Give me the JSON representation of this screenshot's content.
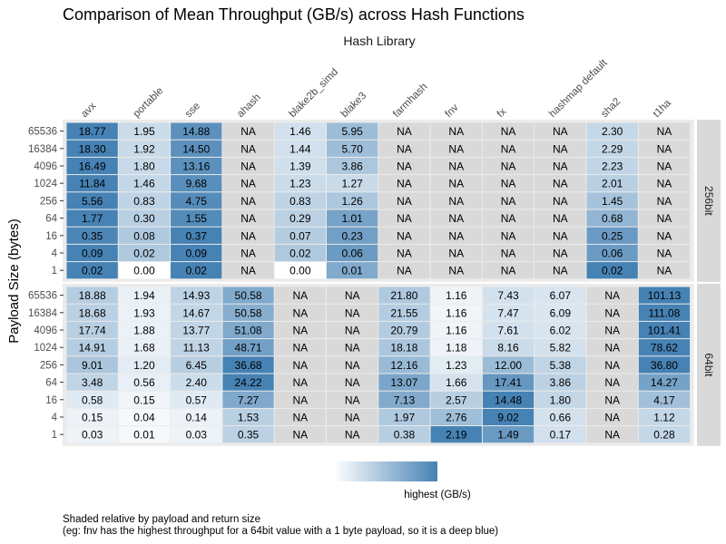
{
  "chart_data": {
    "type": "heatmap",
    "title": "Comparison of Mean Throughput (GB/s) across Hash Functions",
    "column_facet_title": "Hash Library",
    "ylabel": "Payload Size (bytes)",
    "columns": [
      "avx",
      "portable",
      "sse",
      "ahash",
      "blake2b_simd",
      "blake3",
      "farmhash",
      "fnv",
      "fx",
      "hashmap default",
      "sha2",
      "t1ha"
    ],
    "rows": [
      "65536",
      "16384",
      "4096",
      "1024",
      "256",
      "64",
      "16",
      "4",
      "1"
    ],
    "na_label": "NA",
    "panels": [
      {
        "name": "256bit",
        "values": [
          [
            18.77,
            1.95,
            14.88,
            null,
            1.46,
            5.95,
            null,
            null,
            null,
            null,
            2.3,
            null
          ],
          [
            18.3,
            1.92,
            14.5,
            null,
            1.44,
            5.7,
            null,
            null,
            null,
            null,
            2.29,
            null
          ],
          [
            16.49,
            1.8,
            13.16,
            null,
            1.39,
            3.86,
            null,
            null,
            null,
            null,
            2.23,
            null
          ],
          [
            11.84,
            1.46,
            9.68,
            null,
            1.23,
            1.27,
            null,
            null,
            null,
            null,
            2.01,
            null
          ],
          [
            5.56,
            0.83,
            4.75,
            null,
            0.83,
            1.26,
            null,
            null,
            null,
            null,
            1.45,
            null
          ],
          [
            1.77,
            0.3,
            1.55,
            null,
            0.29,
            1.01,
            null,
            null,
            null,
            null,
            0.68,
            null
          ],
          [
            0.35,
            0.08,
            0.37,
            null,
            0.07,
            0.23,
            null,
            null,
            null,
            null,
            0.25,
            null
          ],
          [
            0.09,
            0.02,
            0.09,
            null,
            0.02,
            0.06,
            null,
            null,
            null,
            null,
            0.06,
            null
          ],
          [
            0.02,
            0.0,
            0.02,
            null,
            0.0,
            0.01,
            null,
            null,
            null,
            null,
            0.02,
            null
          ]
        ],
        "labels": [
          [
            "18.77",
            "1.95",
            "14.88",
            "NA",
            "1.46",
            "5.95",
            "NA",
            "NA",
            "NA",
            "NA",
            "2.30",
            "NA"
          ],
          [
            "18.30",
            "1.92",
            "14.50",
            "NA",
            "1.44",
            "5.70",
            "NA",
            "NA",
            "NA",
            "NA",
            "2.29",
            "NA"
          ],
          [
            "16.49",
            "1.80",
            "13.16",
            "NA",
            "1.39",
            "3.86",
            "NA",
            "NA",
            "NA",
            "NA",
            "2.23",
            "NA"
          ],
          [
            "11.84",
            "1.46",
            "9.68",
            "NA",
            "1.23",
            "1.27",
            "NA",
            "NA",
            "NA",
            "NA",
            "2.01",
            "NA"
          ],
          [
            "5.56",
            "0.83",
            "4.75",
            "NA",
            "0.83",
            "1.26",
            "NA",
            "NA",
            "NA",
            "NA",
            "1.45",
            "NA"
          ],
          [
            "1.77",
            "0.30",
            "1.55",
            "NA",
            "0.29",
            "1.01",
            "NA",
            "NA",
            "NA",
            "NA",
            "0.68",
            "NA"
          ],
          [
            "0.35",
            "0.08",
            "0.37",
            "NA",
            "0.07",
            "0.23",
            "NA",
            "NA",
            "NA",
            "NA",
            "0.25",
            "NA"
          ],
          [
            "0.09",
            "0.02",
            "0.09",
            "NA",
            "0.02",
            "0.06",
            "NA",
            "NA",
            "NA",
            "NA",
            "0.06",
            "NA"
          ],
          [
            "0.02",
            "0.00",
            "0.02",
            "NA",
            "0.00",
            "0.01",
            "NA",
            "NA",
            "NA",
            "NA",
            "0.02",
            "NA"
          ]
        ]
      },
      {
        "name": "64bit",
        "values": [
          [
            18.88,
            1.94,
            14.93,
            50.58,
            null,
            null,
            21.8,
            1.16,
            7.43,
            6.07,
            null,
            101.13
          ],
          [
            18.68,
            1.93,
            14.67,
            50.58,
            null,
            null,
            21.55,
            1.16,
            7.47,
            6.09,
            null,
            111.08
          ],
          [
            17.74,
            1.88,
            13.77,
            51.08,
            null,
            null,
            20.79,
            1.16,
            7.61,
            6.02,
            null,
            101.41
          ],
          [
            14.91,
            1.68,
            11.13,
            48.71,
            null,
            null,
            18.18,
            1.18,
            8.16,
            5.82,
            null,
            78.62
          ],
          [
            9.01,
            1.2,
            6.45,
            36.68,
            null,
            null,
            12.16,
            1.23,
            12.0,
            5.38,
            null,
            36.8
          ],
          [
            3.48,
            0.56,
            2.4,
            24.22,
            null,
            null,
            13.07,
            1.66,
            17.41,
            3.86,
            null,
            14.27
          ],
          [
            0.58,
            0.15,
            0.57,
            7.27,
            null,
            null,
            7.13,
            2.57,
            14.48,
            1.8,
            null,
            4.17
          ],
          [
            0.15,
            0.04,
            0.14,
            1.53,
            null,
            null,
            1.97,
            2.76,
            9.02,
            0.66,
            null,
            1.12
          ],
          [
            0.03,
            0.01,
            0.03,
            0.35,
            null,
            null,
            0.38,
            2.19,
            1.49,
            0.17,
            null,
            0.28
          ]
        ],
        "labels": [
          [
            "18.88",
            "1.94",
            "14.93",
            "50.58",
            "NA",
            "NA",
            "21.80",
            "1.16",
            "7.43",
            "6.07",
            "NA",
            "101.13"
          ],
          [
            "18.68",
            "1.93",
            "14.67",
            "50.58",
            "NA",
            "NA",
            "21.55",
            "1.16",
            "7.47",
            "6.09",
            "NA",
            "111.08"
          ],
          [
            "17.74",
            "1.88",
            "13.77",
            "51.08",
            "NA",
            "NA",
            "20.79",
            "1.16",
            "7.61",
            "6.02",
            "NA",
            "101.41"
          ],
          [
            "14.91",
            "1.68",
            "11.13",
            "48.71",
            "NA",
            "NA",
            "18.18",
            "1.18",
            "8.16",
            "5.82",
            "NA",
            "78.62"
          ],
          [
            "9.01",
            "1.20",
            "6.45",
            "36.68",
            "NA",
            "NA",
            "12.16",
            "1.23",
            "12.00",
            "5.38",
            "NA",
            "36.80"
          ],
          [
            "3.48",
            "0.56",
            "2.40",
            "24.22",
            "NA",
            "NA",
            "13.07",
            "1.66",
            "17.41",
            "3.86",
            "NA",
            "14.27"
          ],
          [
            "0.58",
            "0.15",
            "0.57",
            "7.27",
            "NA",
            "NA",
            "7.13",
            "2.57",
            "14.48",
            "1.80",
            "NA",
            "4.17"
          ],
          [
            "0.15",
            "0.04",
            "0.14",
            "1.53",
            "NA",
            "NA",
            "1.97",
            "2.76",
            "9.02",
            "0.66",
            "NA",
            "1.12"
          ],
          [
            "0.03",
            "0.01",
            "0.03",
            "0.35",
            "NA",
            "NA",
            "0.38",
            "2.19",
            "1.49",
            "0.17",
            "NA",
            "0.28"
          ]
        ]
      }
    ],
    "legend": {
      "label": "highest (GB/s)",
      "low_color": "#ffffff",
      "high_color": "#4682b4"
    },
    "na_color": "#d9d9d9",
    "notes": [
      "Shaded relative by payload and return size",
      "(eg: fnv has the highest throughput for a 64bit value with a 1 byte payload, so it is a deep blue)"
    ]
  }
}
